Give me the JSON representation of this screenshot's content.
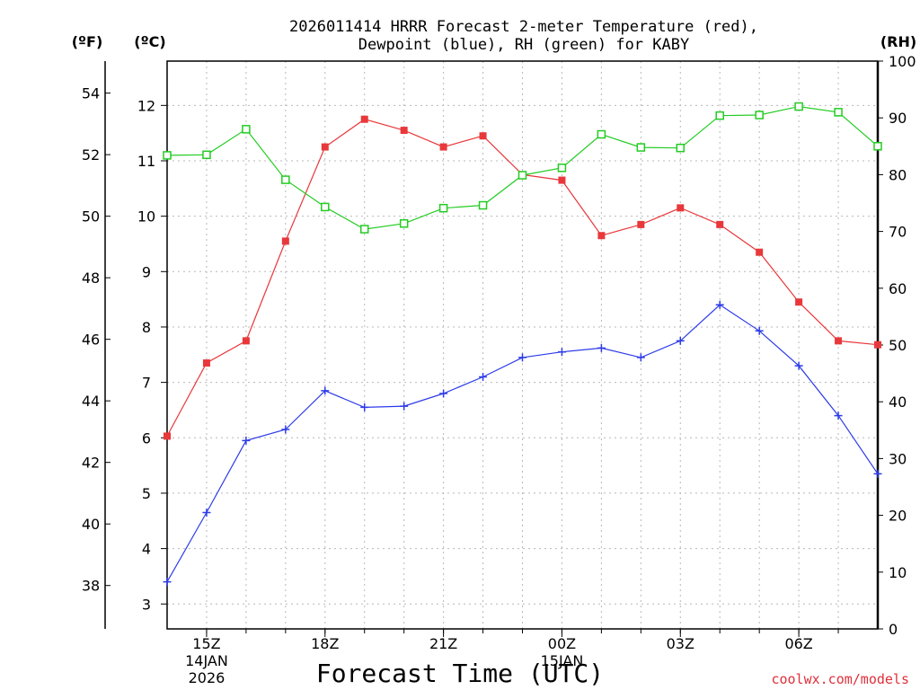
{
  "chart_data": {
    "type": "line",
    "title_line1": "2026011414 HRRR Forecast 2-meter Temperature (red),",
    "title_line2": "Dewpoint (blue), RH (green) for KABY",
    "xlabel": "Forecast Time (UTC)",
    "watermark": "coolwx.com/models",
    "units": {
      "f": "(ºF)",
      "c": "(ºC)",
      "rh": "(RH)"
    },
    "x_hours": [
      14,
      15,
      16,
      17,
      18,
      19,
      20,
      21,
      22,
      23,
      24,
      25,
      26,
      27,
      28,
      29,
      30,
      31,
      32
    ],
    "x_ticks": [
      {
        "hour": 15,
        "lines": [
          "15Z",
          "14JAN",
          "2026"
        ]
      },
      {
        "hour": 18,
        "lines": [
          "18Z"
        ]
      },
      {
        "hour": 21,
        "lines": [
          "21Z"
        ]
      },
      {
        "hour": 24,
        "lines": [
          "00Z",
          "15JAN"
        ]
      },
      {
        "hour": 27,
        "lines": [
          "03Z"
        ]
      },
      {
        "hour": 30,
        "lines": [
          "06Z"
        ]
      }
    ],
    "celsius_axis": {
      "ylim": [
        2.55,
        12.8
      ],
      "ticks": [
        "3",
        "4",
        "5",
        "6",
        "7",
        "8",
        "9",
        "10",
        "11",
        "12"
      ]
    },
    "fahrenheit_axis": {
      "ticks": [
        "38",
        "40",
        "42",
        "44",
        "46",
        "48",
        "50",
        "52",
        "54"
      ]
    },
    "rh_axis": {
      "ylim": [
        0,
        100
      ],
      "ticks": [
        "0",
        "10",
        "20",
        "30",
        "40",
        "50",
        "60",
        "70",
        "80",
        "90",
        "100"
      ]
    },
    "grid": true,
    "series": [
      {
        "key": "temperature",
        "axis": "celsius",
        "color": "#e8383b",
        "marker": "filled-square",
        "values": [
          6.03,
          7.35,
          7.75,
          9.55,
          11.25,
          11.75,
          11.55,
          11.25,
          11.45,
          10.75,
          10.65,
          9.65,
          9.85,
          10.15,
          9.85,
          9.35,
          8.45,
          7.75,
          7.68
        ]
      },
      {
        "key": "dewpoint",
        "axis": "celsius",
        "color": "#2d3be8",
        "marker": "plus",
        "values": [
          3.4,
          4.65,
          5.95,
          6.15,
          6.85,
          6.55,
          6.57,
          6.8,
          7.1,
          7.45,
          7.55,
          7.62,
          7.45,
          7.75,
          8.4,
          7.93,
          7.3,
          6.4,
          5.35
        ]
      },
      {
        "key": "rh",
        "axis": "rh",
        "color": "#22cc22",
        "marker": "open-square",
        "values": [
          83.4,
          83.5,
          88.0,
          79.1,
          74.3,
          70.4,
          71.4,
          74.1,
          74.6,
          79.9,
          81.2,
          87.1,
          84.8,
          84.7,
          90.4,
          90.5,
          92.0,
          91.0,
          85.0
        ]
      }
    ]
  }
}
